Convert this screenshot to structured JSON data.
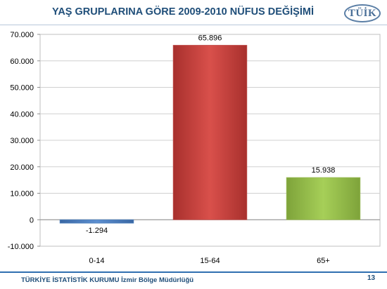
{
  "slide": {
    "title": "YAŞ GRUPLARINA GÖRE 2009-2010 NÜFUS DEĞİŞİMİ",
    "logo_text": "TÜİK",
    "footer": "TÜRKİYE İSTATİSTİK KURUMU İzmir Bölge Müdürlüğü",
    "page_number": "13"
  },
  "chart_data": {
    "type": "bar",
    "title": "YAŞ GRUPLARINA GÖRE 2009-2010 NÜFUS DEĞİŞİMİ",
    "categories": [
      "0-14",
      "15-64",
      "65+"
    ],
    "values": [
      -1294,
      65896,
      15938
    ],
    "data_labels": [
      "-1.294",
      "65.896",
      "15.938"
    ],
    "bar_colors": [
      "#4f81bd",
      "#c0504d",
      "#9bbb59"
    ],
    "ylim": [
      -10000,
      70000
    ],
    "yticks": [
      -10000,
      0,
      10000,
      20000,
      30000,
      40000,
      50000,
      60000,
      70000
    ],
    "ytick_labels": [
      "-10.000",
      "0",
      "10.000",
      "20.000",
      "30.000",
      "40.000",
      "50.000",
      "60.000",
      "70.000"
    ],
    "xlabel": "",
    "ylabel": "",
    "grid": true,
    "legend": "none"
  }
}
